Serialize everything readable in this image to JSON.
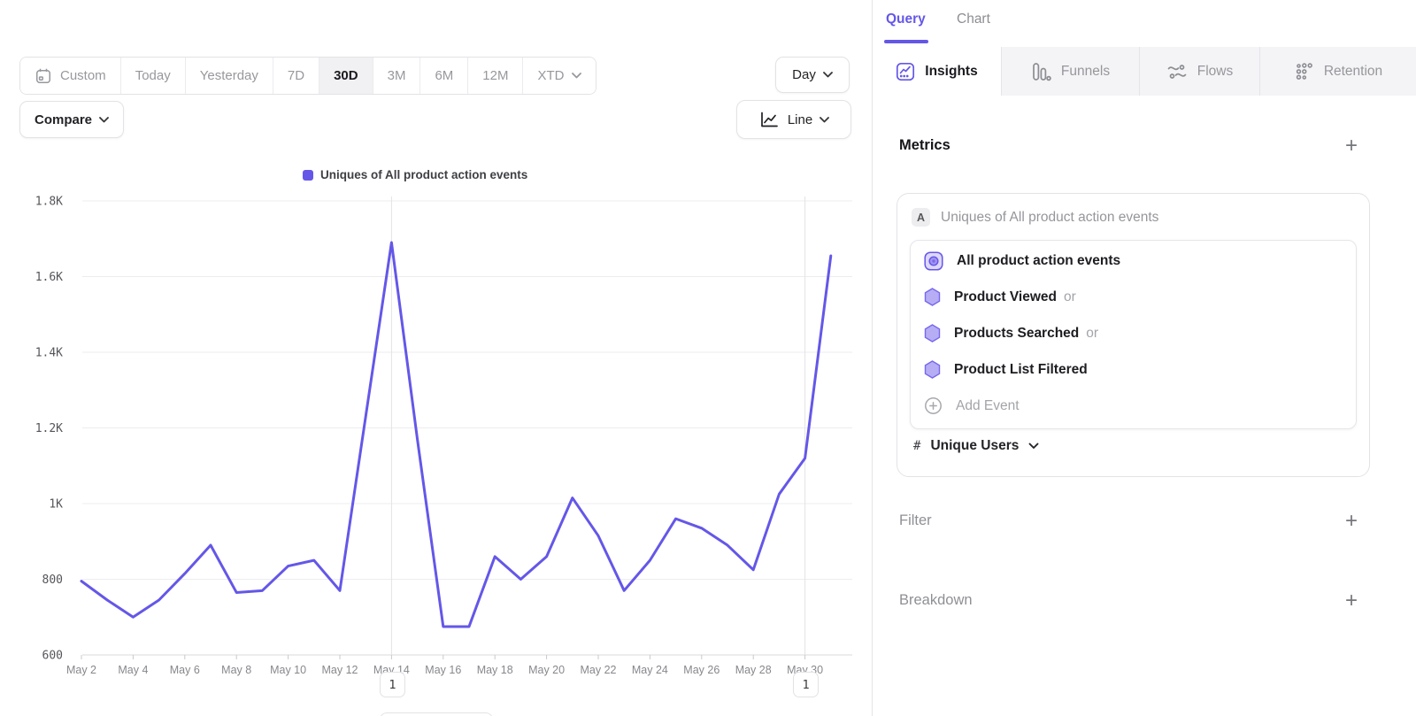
{
  "glyphs": {
    "plus": "+"
  },
  "colors": {
    "accent": "#6457E8",
    "hexagon_fill": "#b6adf4",
    "hexagon_stroke": "#7668ee"
  },
  "toolbar": {
    "ranges": [
      "Custom",
      "Today",
      "Yesterday",
      "7D",
      "30D",
      "3M",
      "6M",
      "12M",
      "XTD"
    ],
    "selected_range": "30D",
    "granularity_label": "Day",
    "compare_label": "Compare",
    "chart_type_label": "Line"
  },
  "legend": {
    "label": "Uniques of All product action events"
  },
  "panel": {
    "view_tabs": [
      {
        "label": "Query"
      },
      {
        "label": "Chart"
      }
    ],
    "report_tabs": [
      {
        "label": "Insights"
      },
      {
        "label": "Funnels"
      },
      {
        "label": "Flows"
      },
      {
        "label": "Retention"
      }
    ],
    "active_report_tab": "Insights",
    "metrics": {
      "title": "Metrics"
    },
    "metric_card": {
      "series_badge": "A",
      "series_label": "Uniques of All product action events",
      "events": [
        {
          "name": "All product action events",
          "suffix": ""
        },
        {
          "name": "Product Viewed",
          "suffix": "or"
        },
        {
          "name": "Products Searched",
          "suffix": "or"
        },
        {
          "name": "Product List Filtered",
          "suffix": ""
        }
      ],
      "add_event_label": "Add Event",
      "measure": {
        "prefix": "#",
        "label": "Unique Users"
      }
    },
    "filter": {
      "title": "Filter"
    },
    "breakdown": {
      "title": "Breakdown"
    }
  },
  "chart_data": {
    "type": "line",
    "title": "",
    "legend": "Uniques of All product action events",
    "series_color": "#6457E8",
    "x": [
      "May 2",
      "May 3",
      "May 4",
      "May 5",
      "May 6",
      "May 7",
      "May 8",
      "May 9",
      "May 10",
      "May 11",
      "May 12",
      "May 13",
      "May 14",
      "May 15",
      "May 16",
      "May 17",
      "May 18",
      "May 19",
      "May 20",
      "May 21",
      "May 22",
      "May 23",
      "May 24",
      "May 25",
      "May 26",
      "May 27",
      "May 28",
      "May 29",
      "May 30",
      "May 31"
    ],
    "values": [
      795,
      745,
      700,
      745,
      815,
      890,
      765,
      770,
      835,
      850,
      770,
      1230,
      1690,
      1170,
      675,
      675,
      860,
      800,
      860,
      1015,
      915,
      770,
      850,
      960,
      935,
      890,
      825,
      1025,
      1120,
      1655
    ],
    "ylim": [
      600,
      1800
    ],
    "y_ticks": [
      {
        "label": "600",
        "value": 600
      },
      {
        "label": "800",
        "value": 800
      },
      {
        "label": "1K",
        "value": 1000
      },
      {
        "label": "1.2K",
        "value": 1200
      },
      {
        "label": "1.4K",
        "value": 1400
      },
      {
        "label": "1.6K",
        "value": 1600
      },
      {
        "label": "1.8K",
        "value": 1800
      }
    ],
    "x_tick_every": 2,
    "annotations": [
      {
        "index": 12,
        "label": "1"
      },
      {
        "index": 28,
        "label": "1"
      }
    ],
    "grid": true,
    "legend_position": "top"
  }
}
